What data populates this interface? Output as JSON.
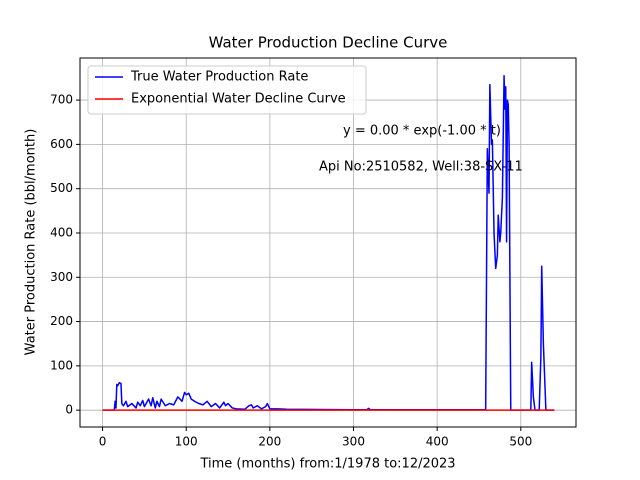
{
  "chart_data": {
    "type": "line",
    "title": "Water Production Decline Curve",
    "xlabel": "Time (months) from:1/1978 to:12/2023",
    "ylabel": "Water Production Rate (bbl/month)",
    "annotations": [
      "y = 0.00 * exp(-1.00 * t)",
      "Api No:2510582, Well:38-SX-11"
    ],
    "xlim": [
      -27,
      566
    ],
    "ylim": [
      -38,
      795
    ],
    "xticks": [
      0,
      100,
      200,
      300,
      400,
      500
    ],
    "yticks": [
      0,
      100,
      200,
      300,
      400,
      500,
      600,
      700
    ],
    "grid": true,
    "legend": "upper left",
    "series": [
      {
        "name": "True Water Production Rate",
        "color": "#0000ff",
        "x": [
          0,
          14,
          15,
          16,
          17,
          18,
          20,
          22,
          23,
          25,
          28,
          30,
          35,
          40,
          42,
          45,
          48,
          50,
          55,
          58,
          60,
          63,
          65,
          68,
          70,
          75,
          80,
          85,
          90,
          95,
          98,
          100,
          103,
          106,
          110,
          115,
          120,
          125,
          130,
          135,
          140,
          145,
          147,
          150,
          155,
          160,
          170,
          175,
          178,
          180,
          185,
          190,
          195,
          197,
          200,
          210,
          220,
          300,
          316,
          318,
          320,
          400,
          458,
          460,
          462,
          463,
          465,
          466,
          468,
          470,
          472,
          473,
          475,
          476,
          478,
          480,
          481,
          482,
          483,
          484,
          485,
          486,
          487,
          488,
          500,
          512,
          513,
          515,
          517,
          522,
          524,
          525,
          527,
          530,
          540
        ],
        "values": [
          0,
          0,
          20,
          5,
          58,
          55,
          62,
          60,
          15,
          10,
          20,
          8,
          15,
          5,
          18,
          10,
          22,
          8,
          25,
          10,
          28,
          5,
          20,
          8,
          25,
          10,
          15,
          12,
          30,
          20,
          40,
          35,
          38,
          25,
          20,
          15,
          12,
          20,
          8,
          15,
          5,
          18,
          10,
          15,
          5,
          3,
          2,
          10,
          12,
          5,
          10,
          3,
          8,
          15,
          3,
          3,
          2,
          1,
          1,
          4,
          1,
          1,
          1,
          590,
          490,
          735,
          600,
          610,
          400,
          320,
          350,
          440,
          380,
          400,
          480,
          755,
          680,
          730,
          380,
          700,
          690,
          600,
          300,
          0,
          0,
          0,
          108,
          30,
          0,
          0,
          120,
          325,
          150,
          0,
          0
        ]
      },
      {
        "name": "Exponential Water Decline Curve",
        "color": "#ff0000",
        "x": [
          0,
          540
        ],
        "values": [
          0,
          0
        ]
      }
    ]
  }
}
